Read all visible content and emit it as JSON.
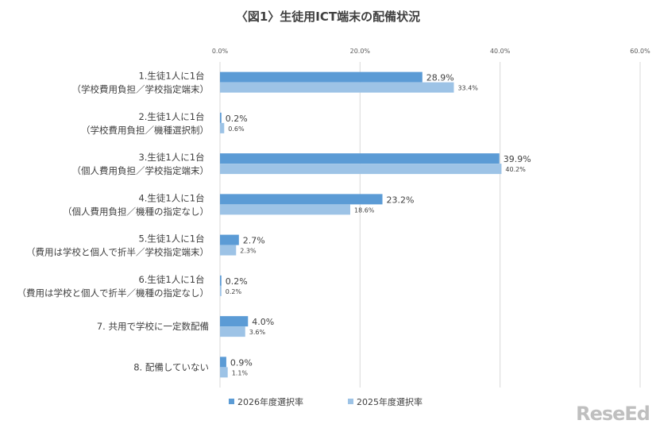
{
  "logo": "ReseEd",
  "chart_data": {
    "type": "bar",
    "orientation": "horizontal",
    "title": "〈図1〉生徒用ICT端末の配備状況",
    "categories": [
      [
        "1.生徒1人に1台",
        "（学校費用負担／学校指定端末）"
      ],
      [
        "2.生徒1人に1台",
        "（学校費用負担／機種選択制）"
      ],
      [
        "3.生徒1人に1台",
        "（個人費用負担／学校指定端末）"
      ],
      [
        "4.生徒1人に1台",
        "（個人費用負担／機種の指定なし）"
      ],
      [
        "5.生徒1人に1台",
        "（費用は学校と個人で折半／学校指定端末）"
      ],
      [
        "6.生徒1人に1台",
        "（費用は学校と個人で折半／機種の指定なし）"
      ],
      [
        "7. 共用で学校に一定数配備"
      ],
      [
        "8. 配備していない"
      ]
    ],
    "series": [
      {
        "name": "2026年度選択率",
        "color": "#5b9bd5",
        "values": [
          28.9,
          0.2,
          39.9,
          23.2,
          2.7,
          0.2,
          4.0,
          0.9
        ]
      },
      {
        "name": "2025年度選択率",
        "color": "#9dc3e6",
        "values": [
          33.4,
          0.6,
          40.2,
          18.6,
          2.3,
          0.2,
          3.6,
          1.1
        ]
      }
    ],
    "xticks": [
      "0.0%",
      "20.0%",
      "40.0%",
      "60.0%"
    ],
    "xlim": [
      0,
      60
    ],
    "grid": true,
    "legend": "bottom"
  }
}
